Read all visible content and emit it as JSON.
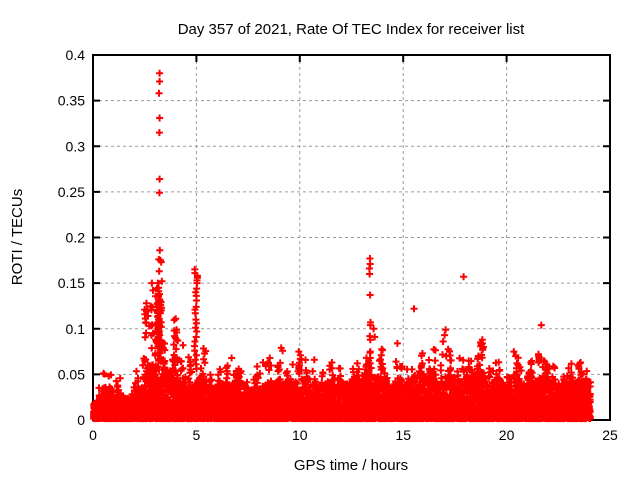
{
  "figure": {
    "background": "#ffffff",
    "border_color": "#000000",
    "grid_color": "#9a9a9a",
    "text_color": "#000000"
  },
  "chart_data": {
    "type": "scatter",
    "title": "Day 357 of 2021, Rate Of TEC Index for receiver list",
    "xlabel": "GPS time / hours",
    "ylabel": "ROTI / TECUs",
    "xlim": [
      0,
      25
    ],
    "ylim": [
      0,
      0.4
    ],
    "x_ticks": [
      0,
      5,
      10,
      15,
      20,
      25
    ],
    "x_tick_labels": [
      "0",
      "5",
      "10",
      "15",
      "20",
      "25"
    ],
    "y_ticks": [
      0,
      0.05,
      0.1,
      0.15,
      0.2,
      0.25,
      0.3,
      0.35,
      0.4
    ],
    "y_tick_labels": [
      "0",
      "0.05",
      "0.1",
      "0.15",
      "0.2",
      "0.25",
      "0.3",
      "0.35",
      "0.4"
    ],
    "grid": true,
    "grid_style": "dashed",
    "legend": null,
    "marker": {
      "shape": "plus",
      "color": "#ff0000",
      "size": 7,
      "stroke": 2
    },
    "data_span_hours": [
      0,
      24.05
    ],
    "outlier_points": [
      [
        3.22,
        0.38
      ],
      [
        3.22,
        0.371
      ],
      [
        3.19,
        0.358
      ],
      [
        3.22,
        0.331
      ],
      [
        3.21,
        0.315
      ],
      [
        3.22,
        0.264
      ],
      [
        3.21,
        0.249
      ],
      [
        3.23,
        0.186
      ],
      [
        3.18,
        0.176
      ],
      [
        3.26,
        0.175
      ],
      [
        3.3,
        0.173
      ],
      [
        3.2,
        0.163
      ],
      [
        3.33,
        0.152
      ],
      [
        3.14,
        0.15
      ],
      [
        2.85,
        0.15
      ],
      [
        2.9,
        0.142
      ],
      [
        2.58,
        0.128
      ],
      [
        2.62,
        0.121
      ],
      [
        2.66,
        0.114
      ],
      [
        2.55,
        0.107
      ],
      [
        2.72,
        0.103
      ],
      [
        15.52,
        0.122
      ],
      [
        17.92,
        0.157
      ],
      [
        21.68,
        0.104
      ],
      [
        9.1,
        0.079
      ],
      [
        9.17,
        0.076
      ],
      [
        9.95,
        0.075
      ],
      [
        10.03,
        0.071
      ],
      [
        17.05,
        0.099
      ],
      [
        17.0,
        0.093
      ],
      [
        16.93,
        0.086
      ],
      [
        17.08,
        0.07
      ],
      [
        20.35,
        0.075
      ],
      [
        20.44,
        0.07
      ],
      [
        23.45,
        0.06
      ],
      [
        23.58,
        0.063
      ],
      [
        6.7,
        0.068
      ],
      [
        8.55,
        0.068
      ],
      [
        8.22,
        0.063
      ],
      [
        10.7,
        0.066
      ],
      [
        11.55,
        0.063
      ],
      [
        12.78,
        0.062
      ],
      [
        14.72,
        0.084
      ],
      [
        13.57,
        0.1
      ],
      [
        13.62,
        0.091
      ]
    ],
    "spike_columns": [
      {
        "hour": 3.22,
        "jitter": 0.1,
        "values": [
          0.145,
          0.141,
          0.138,
          0.135,
          0.132,
          0.129,
          0.126,
          0.123,
          0.12,
          0.117,
          0.114,
          0.111,
          0.108,
          0.105,
          0.102,
          0.099,
          0.096,
          0.093,
          0.09,
          0.087,
          0.084,
          0.081,
          0.078,
          0.125,
          0.118,
          0.11,
          0.131,
          0.122,
          0.113,
          0.104,
          0.095,
          0.136,
          0.128,
          0.107
        ]
      },
      {
        "hour": 4.98,
        "jitter": 0.07,
        "values": [
          0.165,
          0.161,
          0.158,
          0.156,
          0.153,
          0.15,
          0.144,
          0.14,
          0.136,
          0.131,
          0.124,
          0.121,
          0.117,
          0.11,
          0.106,
          0.101,
          0.097,
          0.091,
          0.086,
          0.081,
          0.076,
          0.071,
          0.066,
          0.061,
          0.056
        ]
      },
      {
        "hour": 13.41,
        "jitter": 0.05,
        "values": [
          0.177,
          0.171,
          0.166,
          0.16,
          0.137,
          0.107,
          0.104,
          0.092,
          0.088,
          0.075,
          0.068,
          0.062,
          0.057
        ]
      },
      {
        "hour": 18.8,
        "jitter": 0.08,
        "values": [
          0.088,
          0.085,
          0.083,
          0.081,
          0.079,
          0.077,
          0.084,
          0.08
        ]
      },
      {
        "hour": 21.6,
        "jitter": 0.06,
        "values": [
          0.072,
          0.069,
          0.067,
          0.065,
          0.063,
          0.07
        ]
      }
    ],
    "base_band": {
      "description": "dense noise band; entries are [start_hour, dense_max, spike_max, n_spikes], bin width 0.5h (last bin 0.55h)",
      "bin_width_hours": 0.5,
      "points_per_bin": 155,
      "bins": [
        [
          0.0,
          0.022,
          0.038,
          6
        ],
        [
          0.5,
          0.032,
          0.052,
          10
        ],
        [
          1.0,
          0.028,
          0.046,
          8
        ],
        [
          1.5,
          0.024,
          0.04,
          6
        ],
        [
          2.0,
          0.035,
          0.062,
          10
        ],
        [
          2.5,
          0.06,
          0.125,
          20
        ],
        [
          3.0,
          0.085,
          0.15,
          26
        ],
        [
          3.5,
          0.055,
          0.112,
          16
        ],
        [
          4.0,
          0.048,
          0.095,
          13
        ],
        [
          4.5,
          0.04,
          0.07,
          10
        ],
        [
          5.0,
          0.046,
          0.08,
          10
        ],
        [
          5.5,
          0.036,
          0.056,
          8
        ],
        [
          6.0,
          0.042,
          0.068,
          10
        ],
        [
          6.5,
          0.04,
          0.062,
          9
        ],
        [
          7.0,
          0.042,
          0.06,
          9
        ],
        [
          7.5,
          0.034,
          0.052,
          7
        ],
        [
          8.0,
          0.038,
          0.064,
          9
        ],
        [
          8.5,
          0.04,
          0.062,
          8
        ],
        [
          9.0,
          0.042,
          0.066,
          9
        ],
        [
          9.5,
          0.042,
          0.068,
          9
        ],
        [
          10.0,
          0.044,
          0.068,
          10
        ],
        [
          10.5,
          0.036,
          0.058,
          8
        ],
        [
          11.0,
          0.04,
          0.06,
          8
        ],
        [
          11.5,
          0.044,
          0.058,
          8
        ],
        [
          12.0,
          0.04,
          0.054,
          7
        ],
        [
          12.5,
          0.044,
          0.062,
          9
        ],
        [
          13.0,
          0.05,
          0.078,
          11
        ],
        [
          13.5,
          0.048,
          0.085,
          10
        ],
        [
          14.0,
          0.04,
          0.058,
          8
        ],
        [
          14.5,
          0.044,
          0.066,
          9
        ],
        [
          15.0,
          0.04,
          0.062,
          8
        ],
        [
          15.5,
          0.05,
          0.078,
          11
        ],
        [
          16.0,
          0.048,
          0.066,
          9
        ],
        [
          16.5,
          0.042,
          0.08,
          10
        ],
        [
          17.0,
          0.048,
          0.095,
          12
        ],
        [
          17.5,
          0.042,
          0.07,
          9
        ],
        [
          18.0,
          0.048,
          0.072,
          10
        ],
        [
          18.5,
          0.052,
          0.076,
          10
        ],
        [
          19.0,
          0.04,
          0.058,
          8
        ],
        [
          19.5,
          0.044,
          0.064,
          9
        ],
        [
          20.0,
          0.048,
          0.072,
          10
        ],
        [
          20.5,
          0.04,
          0.058,
          8
        ],
        [
          21.0,
          0.048,
          0.068,
          10
        ],
        [
          21.5,
          0.048,
          0.072,
          10
        ],
        [
          22.0,
          0.044,
          0.062,
          9
        ],
        [
          22.5,
          0.04,
          0.058,
          8
        ],
        [
          23.0,
          0.044,
          0.062,
          9
        ],
        [
          23.5,
          0.042,
          0.06,
          8
        ]
      ]
    }
  }
}
